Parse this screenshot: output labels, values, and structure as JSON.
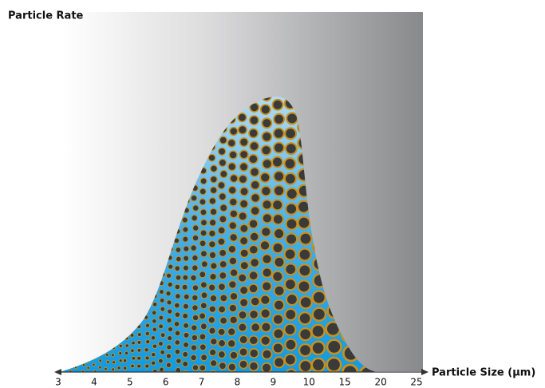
{
  "chart_data": {
    "type": "area",
    "title": "Particle Rate",
    "x_label": "Particle Size (µm)",
    "categories": [
      3,
      4,
      5,
      6,
      7,
      8,
      9,
      10,
      15,
      20,
      25
    ]
  }
}
